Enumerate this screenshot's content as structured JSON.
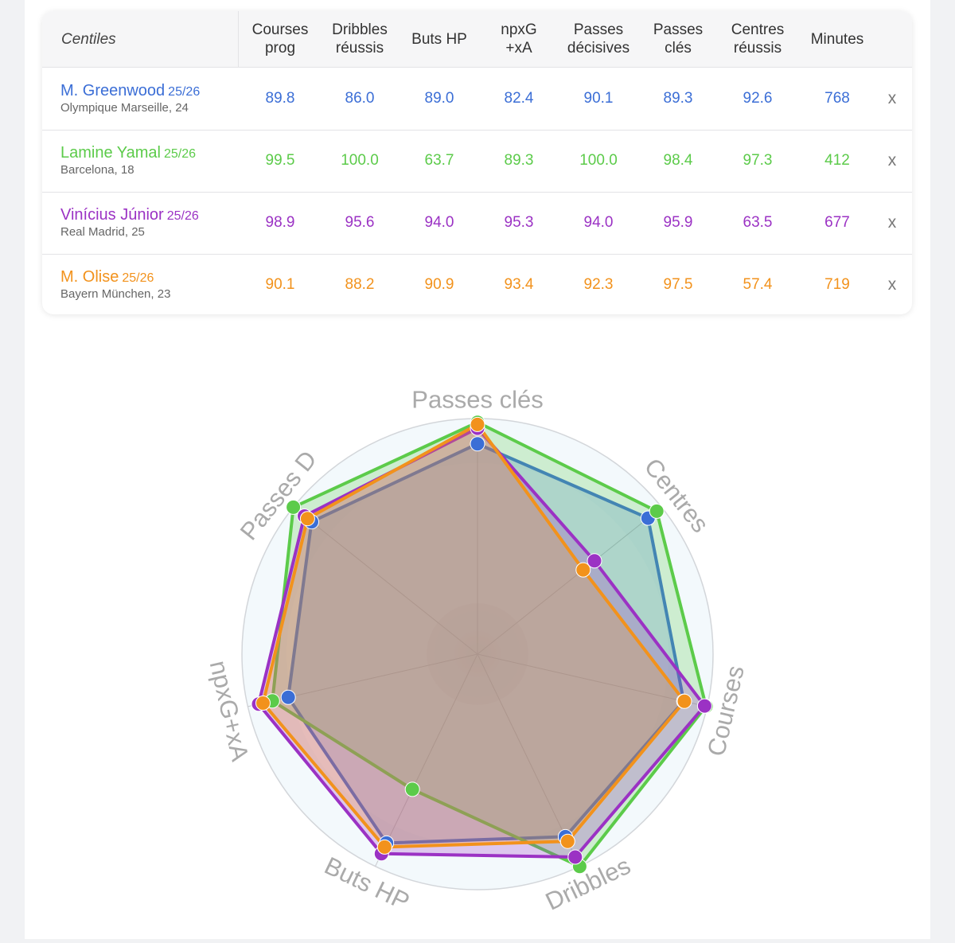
{
  "table": {
    "corner_label": "Centiles",
    "columns": [
      {
        "line1": "Courses",
        "line2": "prog"
      },
      {
        "line1": "Dribbles",
        "line2": "réussis"
      },
      {
        "line1": "Buts HP",
        "line2": ""
      },
      {
        "line1": "npxG",
        "line2": "+xA"
      },
      {
        "line1": "Passes",
        "line2": "décisives"
      },
      {
        "line1": "Passes",
        "line2": "clés"
      },
      {
        "line1": "Centres",
        "line2": "réussis"
      },
      {
        "line1": "Minutes",
        "line2": ""
      }
    ],
    "remove_label": "x",
    "players": [
      {
        "name": "M. Greenwood",
        "season": "25/26",
        "club": "Olympique Marseille, 24",
        "color": "#3b6ed6",
        "values": [
          "89.8",
          "86.0",
          "89.0",
          "82.4",
          "90.1",
          "89.3",
          "92.6",
          "768"
        ]
      },
      {
        "name": "Lamine Yamal",
        "season": "25/26",
        "club": "Barcelona, 18",
        "color": "#5ccb4a",
        "values": [
          "99.5",
          "100.0",
          "63.7",
          "89.3",
          "100.0",
          "98.4",
          "97.3",
          "412"
        ]
      },
      {
        "name": "Vinícius Júnior",
        "season": "25/26",
        "club": "Real Madrid, 25",
        "color": "#9b32c4",
        "values": [
          "98.9",
          "95.6",
          "94.0",
          "95.3",
          "94.0",
          "95.9",
          "63.5",
          "677"
        ]
      },
      {
        "name": "M. Olise",
        "season": "25/26",
        "club": "Bayern München, 23",
        "color": "#f2921c",
        "values": [
          "90.1",
          "88.2",
          "90.9",
          "93.4",
          "92.3",
          "97.5",
          "57.4",
          "719"
        ]
      }
    ]
  },
  "chart_data": {
    "type": "radar",
    "axes": [
      "Passes clés",
      "Centres",
      "Courses",
      "Dribbles",
      "Buts HP",
      "npxG+xA",
      "Passes D"
    ],
    "range": [
      0,
      100
    ],
    "series": [
      {
        "name": "M. Greenwood",
        "color": "#3b6ed6",
        "values": [
          89.3,
          92.6,
          89.8,
          86.0,
          89.0,
          82.4,
          90.1
        ]
      },
      {
        "name": "Lamine Yamal",
        "color": "#5ccb4a",
        "values": [
          98.4,
          97.3,
          99.5,
          100.0,
          63.7,
          89.3,
          100.0
        ]
      },
      {
        "name": "Vinícius Júnior",
        "color": "#9b32c4",
        "values": [
          95.9,
          63.5,
          98.9,
          95.6,
          94.0,
          95.3,
          94.0
        ]
      },
      {
        "name": "M. Olise",
        "color": "#f2921c",
        "values": [
          97.5,
          57.4,
          90.1,
          88.2,
          90.9,
          93.4,
          92.3
        ]
      }
    ]
  }
}
